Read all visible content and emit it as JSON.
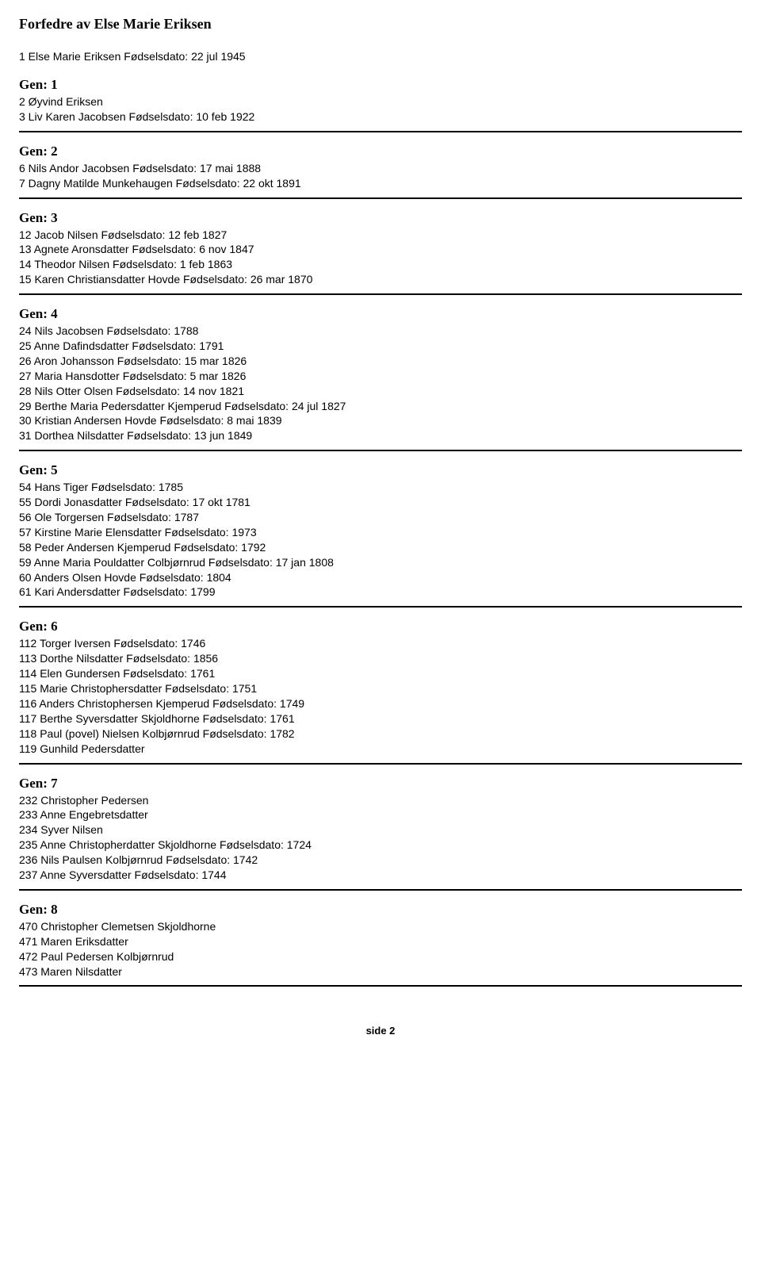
{
  "title": "Forfedre av Else Marie Eriksen",
  "subject": "1 Else Marie Eriksen  Fødselsdato: 22 jul 1945",
  "generations": [
    {
      "label": "Gen:  1",
      "people": [
        "2 Øyvind Eriksen",
        "3 Liv Karen Jacobsen  Fødselsdato: 10 feb 1922"
      ]
    },
    {
      "label": "Gen:  2",
      "people": [
        "6 Nils Andor Jacobsen  Fødselsdato: 17 mai 1888",
        "7 Dagny Matilde Munkehaugen  Fødselsdato: 22 okt 1891"
      ]
    },
    {
      "label": "Gen:  3",
      "people": [
        "12 Jacob Nilsen  Fødselsdato: 12 feb 1827",
        "13 Agnete Aronsdatter  Fødselsdato: 6 nov 1847",
        "14 Theodor Nilsen  Fødselsdato: 1 feb 1863",
        "15 Karen Christiansdatter Hovde  Fødselsdato: 26 mar 1870"
      ]
    },
    {
      "label": "Gen:  4",
      "people": [
        "24 Nils Jacobsen  Fødselsdato: 1788",
        "25 Anne Dafindsdatter  Fødselsdato: 1791",
        "26 Aron Johansson  Fødselsdato: 15 mar 1826",
        "27 Maria Hansdotter  Fødselsdato: 5 mar 1826",
        "28 Nils Otter Olsen  Fødselsdato: 14 nov 1821",
        "29 Berthe Maria Pedersdatter Kjemperud  Fødselsdato: 24 jul 1827",
        "30 Kristian Andersen Hovde  Fødselsdato: 8 mai 1839",
        "31 Dorthea Nilsdatter  Fødselsdato: 13 jun 1849"
      ]
    },
    {
      "label": "Gen:  5",
      "people": [
        "54 Hans Tiger  Fødselsdato: 1785",
        "55 Dordi Jonasdatter  Fødselsdato: 17 okt 1781",
        "56 Ole Torgersen  Fødselsdato: 1787",
        "57 Kirstine Marie Elensdatter  Fødselsdato: 1973",
        "58 Peder Andersen Kjemperud  Fødselsdato: 1792",
        "59 Anne Maria Pouldatter Colbjørnrud  Fødselsdato: 17 jan 1808",
        "60 Anders Olsen Hovde  Fødselsdato: 1804",
        "61 Kari Andersdatter  Fødselsdato: 1799"
      ]
    },
    {
      "label": "Gen:  6",
      "people": [
        "112 Torger Iversen  Fødselsdato: 1746",
        "113 Dorthe Nilsdatter  Fødselsdato: 1856",
        "114 Elen Gundersen  Fødselsdato: 1761",
        "115 Marie Christophersdatter  Fødselsdato: 1751",
        "116 Anders Christophersen Kjemperud  Fødselsdato: 1749",
        "117 Berthe Syversdatter Skjoldhorne  Fødselsdato: 1761",
        "118 Paul (povel) Nielsen Kolbjørnrud  Fødselsdato: 1782",
        "119 Gunhild Pedersdatter"
      ]
    },
    {
      "label": "Gen:  7",
      "people": [
        "232 Christopher Pedersen",
        "233 Anne Engebretsdatter",
        "234 Syver Nilsen",
        "235 Anne Christopherdatter Skjoldhorne  Fødselsdato: 1724",
        "236 Nils Paulsen Kolbjørnrud  Fødselsdato: 1742",
        "237 Anne Syversdatter  Fødselsdato: 1744"
      ]
    },
    {
      "label": "Gen:  8",
      "people": [
        "470 Christopher Clemetsen Skjoldhorne",
        "471 Maren Eriksdatter",
        "472 Paul Pedersen Kolbjørnrud",
        "473 Maren Nilsdatter"
      ]
    }
  ],
  "footer": "side 2",
  "style": {
    "background_color": "#ffffff",
    "text_color": "#000000",
    "rule_color": "#000000",
    "title_fontsize_pt": 14,
    "gen_title_fontsize_pt": 13,
    "body_fontsize_pt": 10,
    "title_font_family": "Times New Roman",
    "body_font_family": "Arial"
  }
}
